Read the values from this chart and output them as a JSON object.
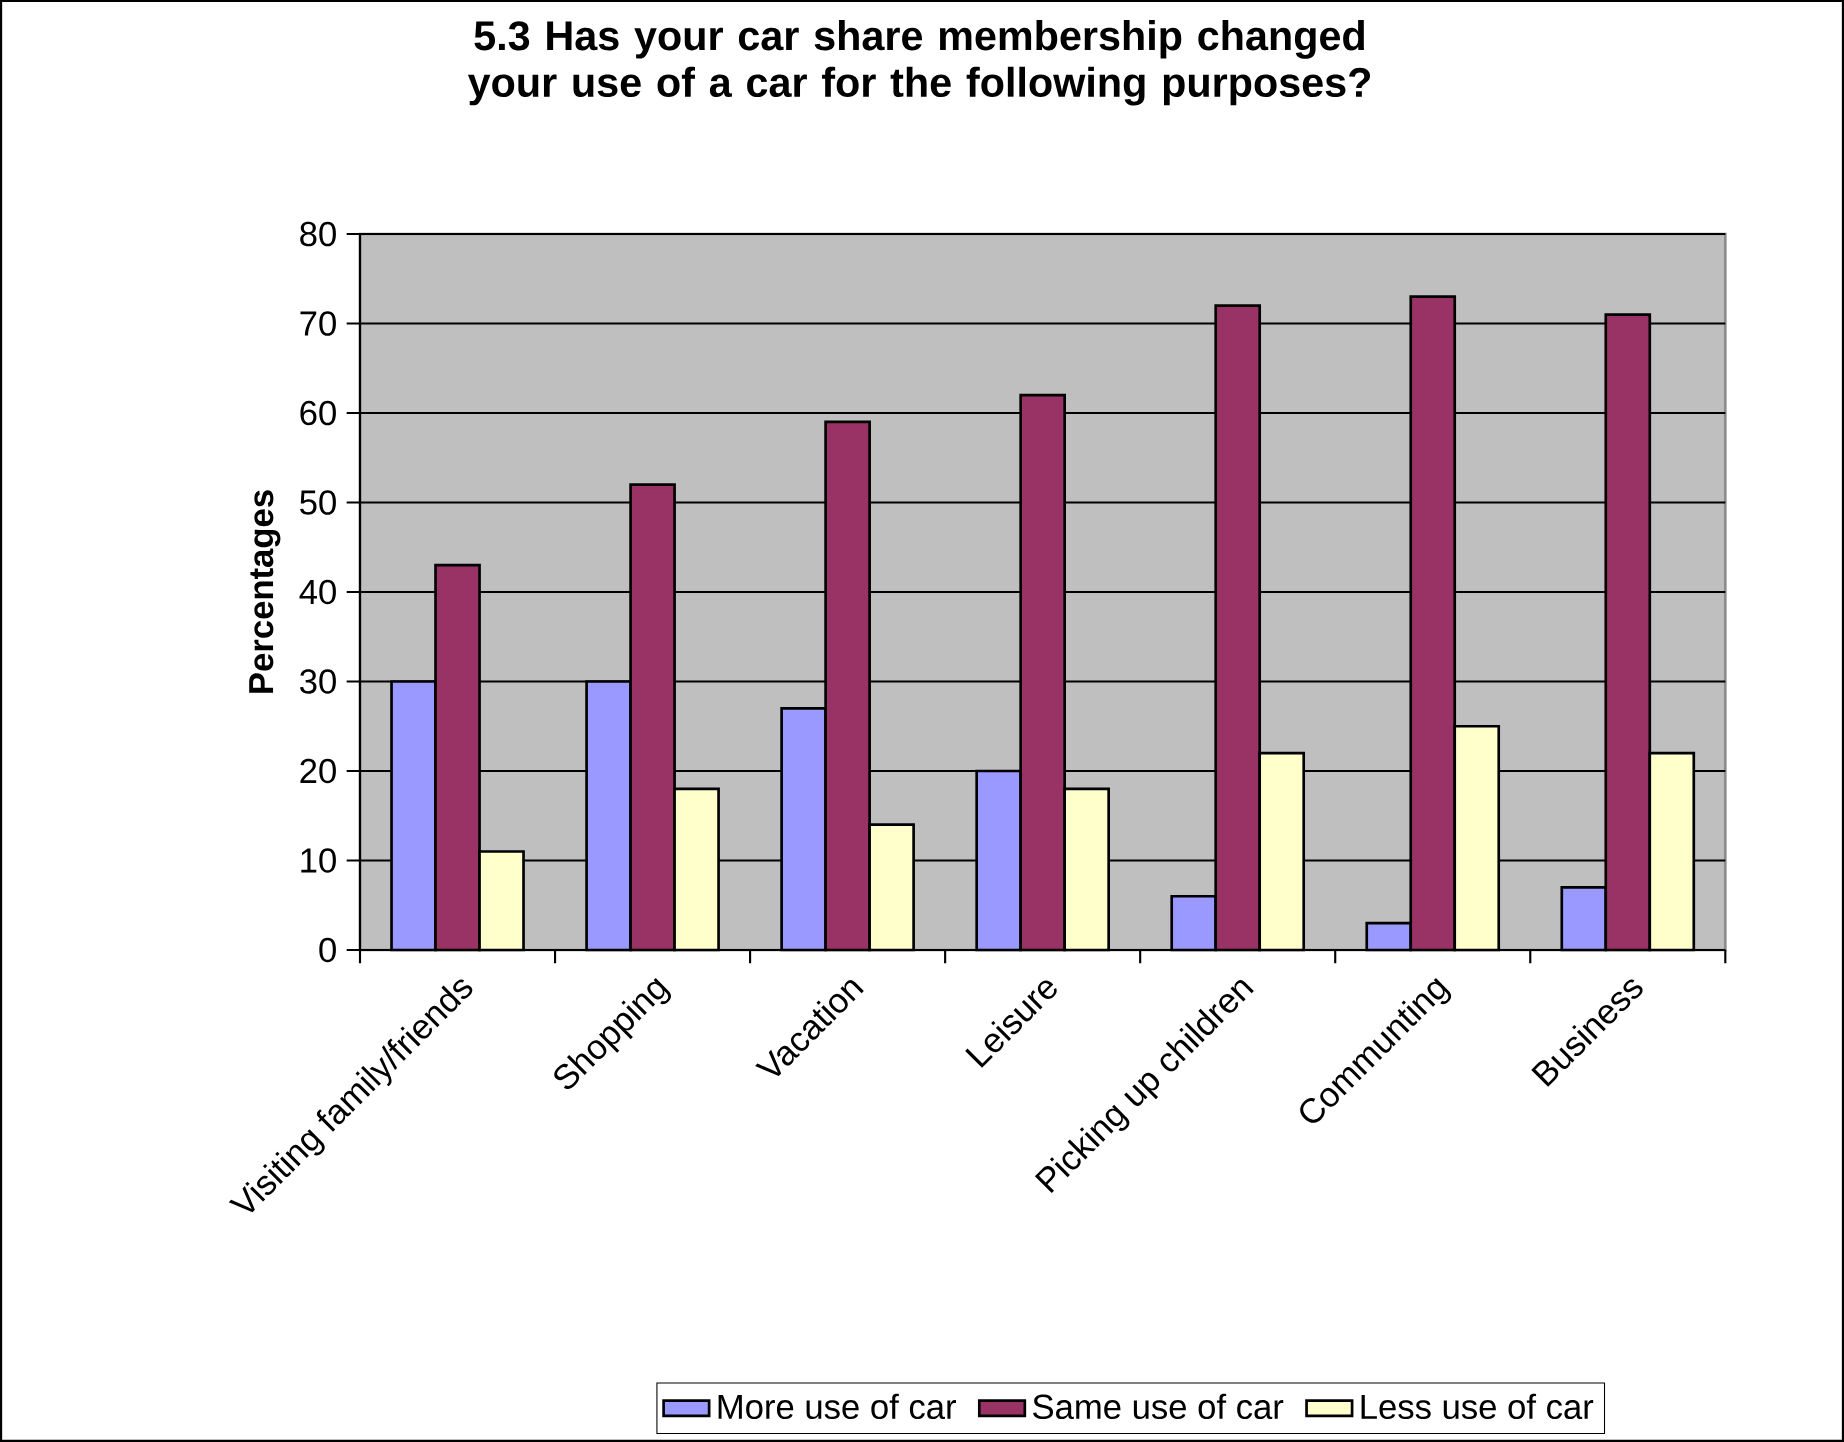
{
  "chart_data": {
    "type": "bar",
    "title": "5.3 Has your car share membership changed your use of a car for the following purposes?",
    "ylabel": "Percentages",
    "categories": [
      "Visiting family/friends",
      "Shopping",
      "Vacation",
      "Leisure",
      "Picking up children",
      "Communting",
      "Business"
    ],
    "series": [
      {
        "name": "More use of car",
        "color": "#9999ff",
        "values": [
          30,
          30,
          27,
          20,
          6,
          3,
          7
        ]
      },
      {
        "name": "Same use of car",
        "color": "#993366",
        "values": [
          43,
          52,
          59,
          62,
          72,
          73,
          71
        ]
      },
      {
        "name": "Less use of car",
        "color": "#ffffcc",
        "values": [
          11,
          18,
          14,
          18,
          22,
          25,
          22
        ]
      }
    ],
    "ylim": [
      0,
      80
    ],
    "yticks": [
      0,
      10,
      20,
      30,
      40,
      50,
      60,
      70,
      80
    ],
    "grid": "y",
    "legend": "bottom"
  }
}
